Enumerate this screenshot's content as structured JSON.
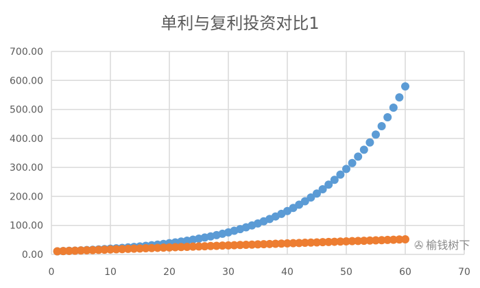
{
  "chart_data": {
    "type": "scatter",
    "title": "单利与复利投资对比1",
    "xlim": [
      0,
      70
    ],
    "ylim": [
      0,
      700
    ],
    "xticks": [
      "0",
      "10",
      "20",
      "30",
      "40",
      "50",
      "60",
      "70"
    ],
    "yticks": [
      "0.00",
      "100.00",
      "200.00",
      "300.00",
      "400.00",
      "500.00",
      "600.00",
      "700.00"
    ],
    "grid": true,
    "x": [
      1,
      2,
      3,
      4,
      5,
      6,
      7,
      8,
      9,
      10,
      11,
      12,
      13,
      14,
      15,
      16,
      17,
      18,
      19,
      20,
      21,
      22,
      23,
      24,
      25,
      26,
      27,
      28,
      29,
      30,
      31,
      32,
      33,
      34,
      35,
      36,
      37,
      38,
      39,
      40,
      41,
      42,
      43,
      44,
      45,
      46,
      47,
      48,
      49,
      50,
      51,
      52,
      53,
      54,
      55,
      56,
      57,
      58,
      59,
      60
    ],
    "series": [
      {
        "color": "#5b9bd5",
        "values": [
          10.7,
          11.4,
          12.3,
          13.1,
          14.0,
          15.0,
          16.1,
          17.2,
          18.4,
          19.7,
          21.0,
          22.5,
          24.1,
          25.8,
          27.6,
          29.5,
          31.6,
          33.8,
          36.2,
          38.7,
          41.4,
          44.3,
          47.4,
          50.7,
          54.3,
          58.1,
          62.1,
          66.5,
          71.1,
          76.1,
          81.5,
          87.2,
          93.3,
          99.8,
          106.8,
          114.2,
          122.2,
          130.8,
          139.9,
          149.7,
          160.2,
          171.4,
          183.4,
          196.3,
          210.0,
          224.7,
          240.5,
          257.3,
          275.3,
          294.6,
          315.2,
          337.3,
          360.9,
          386.1,
          413.2,
          442.1,
          473.0,
          506.1,
          541.6,
          579.5
        ]
      },
      {
        "color": "#ed7d31",
        "values": [
          10.7,
          11.4,
          12.1,
          12.8,
          13.5,
          14.2,
          14.9,
          15.6,
          16.3,
          17.0,
          17.7,
          18.4,
          19.1,
          19.8,
          20.5,
          21.2,
          21.9,
          22.6,
          23.3,
          24.0,
          24.7,
          25.4,
          26.1,
          26.8,
          27.5,
          28.2,
          28.9,
          29.6,
          30.3,
          31.0,
          31.7,
          32.4,
          33.1,
          33.8,
          34.5,
          35.2,
          35.9,
          36.6,
          37.3,
          38.0,
          38.7,
          39.4,
          40.1,
          40.8,
          41.5,
          42.2,
          42.9,
          43.6,
          44.3,
          45.0,
          45.7,
          46.4,
          47.1,
          47.8,
          48.5,
          49.2,
          49.9,
          50.6,
          51.3,
          52.0
        ]
      }
    ]
  },
  "watermark": "榆钱树下"
}
